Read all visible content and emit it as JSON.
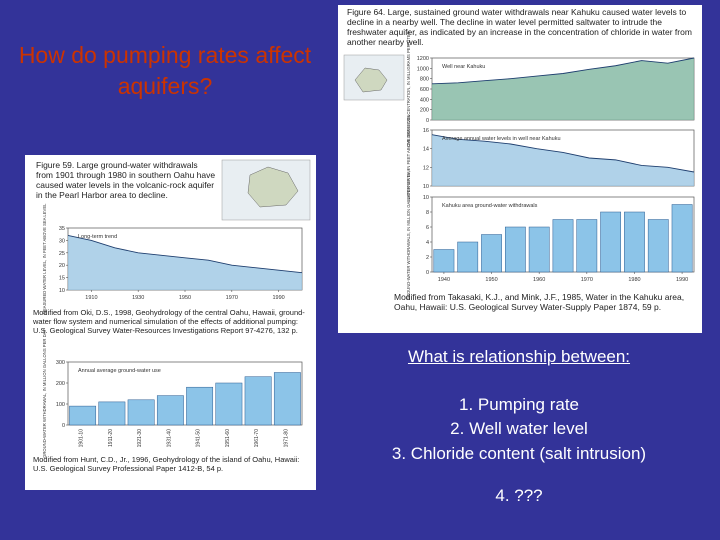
{
  "slide": {
    "title": "How do pumping rates affect aquifers?",
    "question": "What is relationship between:",
    "items": [
      "1.  Pumping rate",
      "2.  Well water level",
      "3.  Chloride content (salt intrusion)",
      "4.  ???"
    ]
  },
  "figures": [
    {
      "caption": "Figure 64. Large, sustained ground water withdrawals near Kahuku caused water levels to decline in a nearby well. The decline in water level permitted saltwater to intrude the freshwater aquifer, as indicated by an increase in the concentration of chloride in water from another nearby well.",
      "credit": "Modified from Takasaki, K.J., and Mink, J.F., 1985, Water in the Kahuku area, Oahu, Hawaii: U.S. Geological Survey Water-Supply Paper 1874, 59 p.",
      "charts": [
        {
          "type": "area",
          "ylabel": "CHLORIDE CONCENTRATION, IN MILLIGRAMS PER LITER",
          "note": "Well near Kahuku",
          "x": [
            1940,
            1945,
            1950,
            1955,
            1960,
            1965,
            1970,
            1975,
            1980,
            1985,
            1990
          ],
          "values": [
            700,
            720,
            760,
            800,
            850,
            900,
            980,
            1050,
            1150,
            1100,
            1200
          ],
          "xlim": [
            1940,
            1990
          ],
          "ylim": [
            0,
            1200
          ],
          "yticks": [
            0,
            200,
            400,
            600,
            800,
            1000,
            1200
          ],
          "color": "#7fb7a0"
        },
        {
          "type": "area",
          "ylabel": "WATER LEVEL, IN FEET ABOVE SEA LEVEL",
          "note": "Average annual water levels in well near Kahuku",
          "x": [
            1940,
            1945,
            1950,
            1955,
            1960,
            1965,
            1970,
            1975,
            1980,
            1985,
            1990
          ],
          "values": [
            15.5,
            15,
            14.8,
            14.5,
            14,
            13.6,
            13,
            12.8,
            12.2,
            12,
            11.5
          ],
          "xlim": [
            1940,
            1990
          ],
          "ylim": [
            10,
            16
          ],
          "yticks": [
            10,
            12,
            14,
            16
          ],
          "color": "#9cc7e3"
        },
        {
          "type": "bar",
          "ylabel": "GROUND-WATER WITHDRAWALS, IN MILLION GALLONS PER DAY",
          "note": "Kahuku area ground-water withdrawals",
          "x": [
            1940,
            1945,
            1950,
            1955,
            1960,
            1965,
            1970,
            1975,
            1980,
            1985,
            1990
          ],
          "values": [
            3,
            4,
            5,
            6,
            6,
            7,
            7,
            8,
            8,
            7,
            9
          ],
          "xlim": [
            1937.5,
            1992.5
          ],
          "ylim": [
            0,
            10
          ],
          "yticks": [
            0,
            2,
            4,
            6,
            8,
            10
          ],
          "xticks": [
            1940,
            1950,
            1960,
            1970,
            1980,
            1990
          ],
          "color": "#8cc4e8"
        }
      ]
    },
    {
      "caption": "Figure 59. Large ground-water withdrawals from 1901 through 1980 in southern Oahu have caused water levels in the volcanic-rock aquifer in the Pearl Harbor area to decline.",
      "credit": "Modified from Oki, D.S., 1998, Geohydrology of the central Oahu, Hawaii, ground-water flow system and numerical simulation of the effects of additional pumping: U.S. Geological Survey Water-Resources Investigations Report 97-4276, 132 p.",
      "credit2": "Modified from Hunt, C.D., Jr., 1996, Geohydrology of the island of Oahu, Hawaii: U.S. Geological Survey Professional Paper 1412-B, 54 p.",
      "charts": [
        {
          "type": "area",
          "ylabel": "MEASURED WATER LEVEL, IN FEET ABOVE SEA LEVEL",
          "note": "Long-term trend",
          "x": [
            1900,
            1910,
            1920,
            1930,
            1940,
            1950,
            1960,
            1970,
            1980,
            1990,
            2000
          ],
          "values": [
            32,
            30,
            27,
            25,
            24,
            23,
            22,
            20,
            19,
            18,
            17
          ],
          "xlim": [
            1900,
            2000
          ],
          "ylim": [
            10,
            35
          ],
          "yticks": [
            10,
            15,
            20,
            25,
            30,
            35
          ],
          "xticks": [
            1910,
            1930,
            1950,
            1970,
            1990
          ],
          "color": "#9cc7e3"
        },
        {
          "type": "catbar",
          "ylabel": "GROUND-WATER WITHDRAWAL, IN MILLION GALLONS PER DAY",
          "note": "Annual average ground-water use",
          "categories": [
            "1901-10",
            "1911-20",
            "1921-30",
            "1931-40",
            "1941-50",
            "1951-60",
            "1961-70",
            "1971-80"
          ],
          "values": [
            90,
            110,
            120,
            140,
            180,
            200,
            230,
            250
          ],
          "ylim": [
            0,
            300
          ],
          "yticks": [
            0,
            100,
            200,
            300
          ],
          "color": "#8cc4e8"
        }
      ]
    }
  ]
}
